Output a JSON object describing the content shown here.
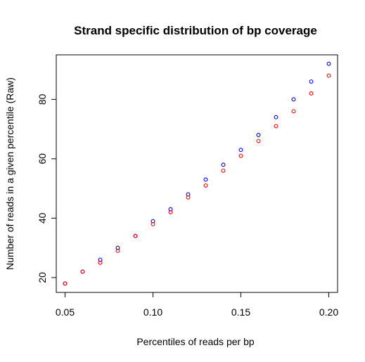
{
  "chart_data": {
    "type": "scatter",
    "title": "Strand specific distribution of bp coverage",
    "xlabel": "Percentiles of reads per bp",
    "ylabel": "Number of reads in a given percentile (Raw)",
    "xlim": [
      0.045,
      0.205
    ],
    "ylim": [
      15,
      95
    ],
    "x_ticks": [
      0.05,
      0.1,
      0.15,
      0.2
    ],
    "x_tick_labels": [
      "0.05",
      "0.10",
      "0.15",
      "0.20"
    ],
    "y_ticks": [
      20,
      40,
      60,
      80
    ],
    "y_tick_labels": [
      "20",
      "40",
      "60",
      "80"
    ],
    "grid": false,
    "x": [
      0.05,
      0.06,
      0.07,
      0.08,
      0.09,
      0.1,
      0.11,
      0.12,
      0.13,
      0.14,
      0.15,
      0.16,
      0.17,
      0.18,
      0.19,
      0.2
    ],
    "series": [
      {
        "color": "#0000ff",
        "values": [
          18,
          22,
          26,
          30,
          34,
          39,
          43,
          48,
          53,
          58,
          63,
          68,
          74,
          80,
          86,
          92
        ]
      },
      {
        "color": "#ff0000",
        "values": [
          18,
          22,
          25,
          29,
          34,
          38,
          42,
          47,
          51,
          56,
          61,
          66,
          71,
          76,
          82,
          88
        ]
      }
    ]
  }
}
